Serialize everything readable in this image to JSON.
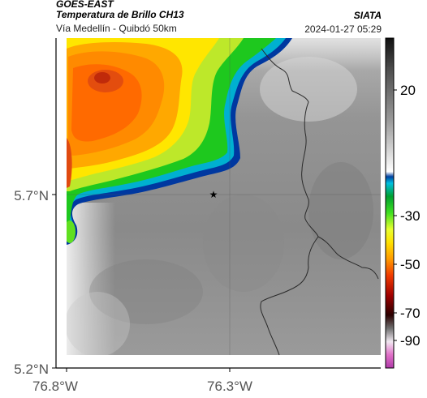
{
  "header": {
    "satellite": "GOES-EAST",
    "product": "Temperatura de Brillo CH13",
    "region": "Vía Medellín - Quibdó 50km",
    "institution": "SIATA",
    "datetime": "2024-01-27 05:29"
  },
  "axes": {
    "y_ticks": [
      "5.7°N",
      "5.2°N"
    ],
    "x_ticks": [
      "76.8°W",
      "76.3°W"
    ]
  },
  "colorbar": {
    "ticks": [
      "20",
      "-30",
      "-50",
      "-70",
      "-90"
    ]
  },
  "colors": {
    "cloud_warm": "#8e8e8e",
    "cold_top_core": "#e04a10",
    "outline": "#2a2a2a"
  },
  "markers": [
    {
      "name": "reference-point",
      "symbol": "★"
    }
  ]
}
